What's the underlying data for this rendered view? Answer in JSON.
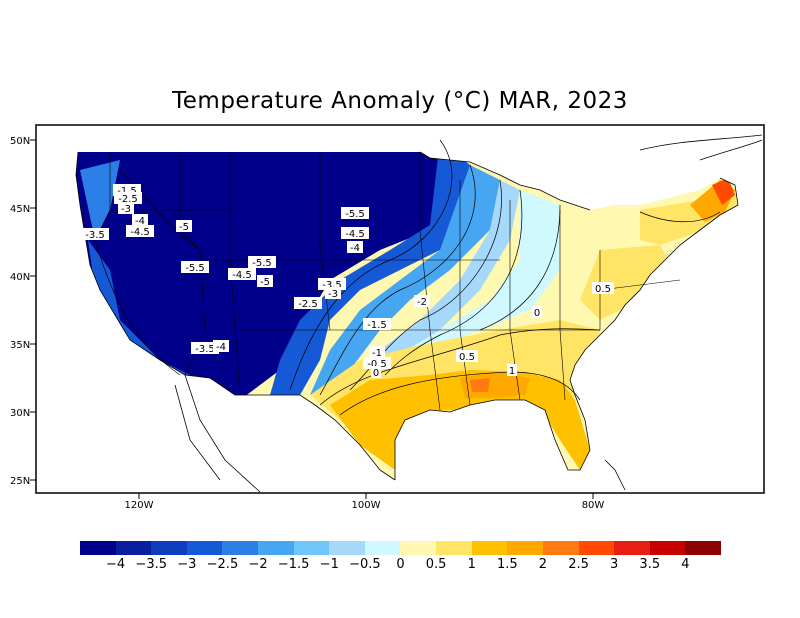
{
  "title": "Temperature Anomaly (°C) MAR, 2023",
  "latitude_labels": [
    "50N",
    "45N",
    "40N",
    "35N",
    "30N",
    "25N"
  ],
  "longitude_labels": [
    "120W",
    "100W",
    "80W"
  ],
  "colorbar": {
    "colors": [
      "#00008b",
      "#0a1fa0",
      "#0d3cbe",
      "#1659d6",
      "#2c7fe6",
      "#47a6f2",
      "#6ec6fa",
      "#a6d8fb",
      "#cff8ff",
      "#fff8b0",
      "#ffe466",
      "#ffc000",
      "#ffa800",
      "#ff7a10",
      "#ff4a00",
      "#e81e10",
      "#c80000",
      "#8b0000"
    ],
    "tick_labels": [
      "−4",
      "−3.5",
      "−3",
      "−2.5",
      "−2",
      "−1.5",
      "−1",
      "−0.5",
      "0",
      "0.5",
      "1",
      "1.5",
      "2",
      "2.5",
      "3",
      "3.5",
      "4"
    ]
  },
  "contour_labels": [
    "-1.5",
    "-2.5",
    "-3",
    "-4",
    "-4.5",
    "-3.5",
    "-5",
    "-5.5",
    "-4.5",
    "-5.5",
    "-5",
    "-5.5",
    "-4.5",
    "-4",
    "-3.5",
    "-3",
    "-2.5",
    "-2",
    "-1.5",
    "-1",
    "-0.5",
    "0",
    "-3.5",
    "-4",
    "0.5",
    "1",
    "0",
    "0.5"
  ]
}
